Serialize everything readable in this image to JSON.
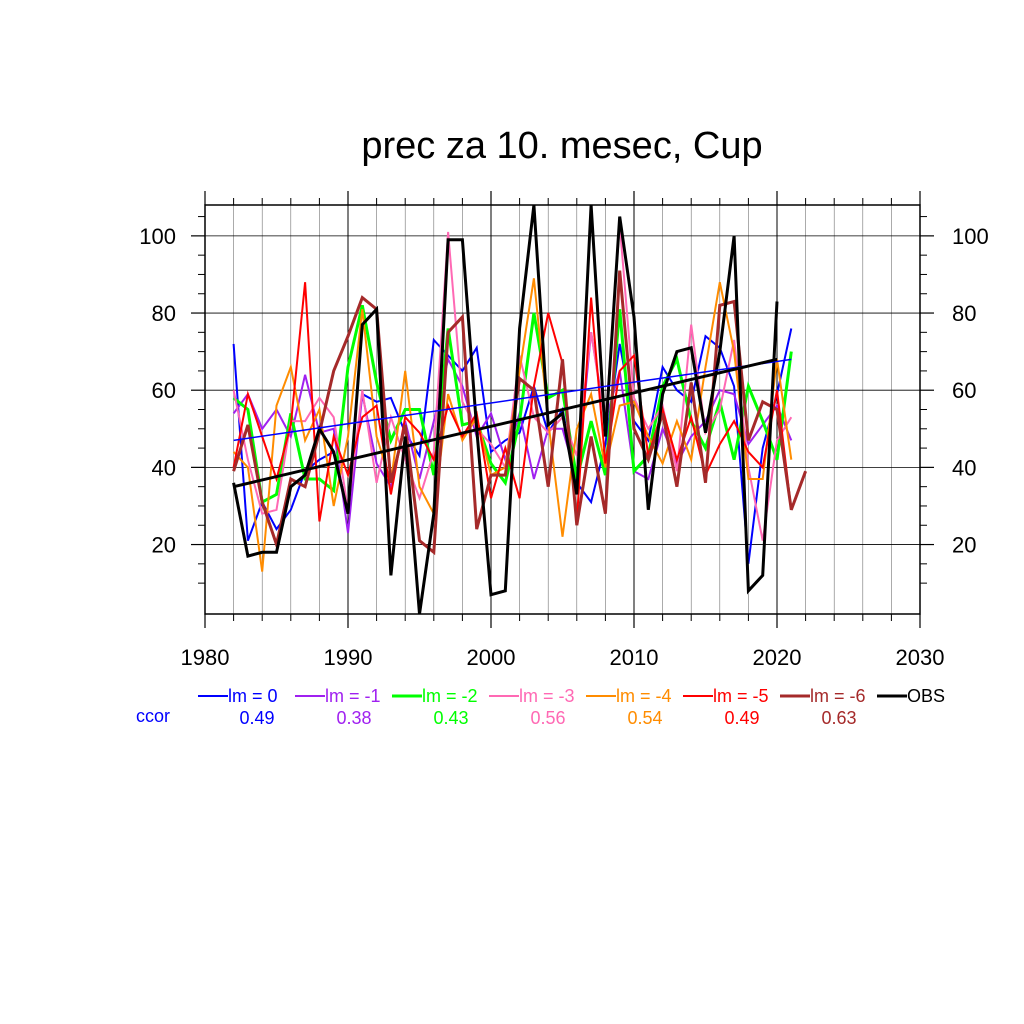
{
  "chart_data": {
    "type": "line",
    "title": "prec za 10. mesec, Cup",
    "xlabel": "",
    "ylabel": "",
    "xlim": [
      1980,
      2030
    ],
    "ylim": [
      2,
      108
    ],
    "x_ticks": [
      1980,
      1990,
      2000,
      2010,
      2020,
      2030
    ],
    "y_ticks": [
      20,
      40,
      60,
      80,
      100
    ],
    "grid": true,
    "legend_placement": "bottom",
    "ccor_label": "ccor",
    "ccor_color": "#0000ff",
    "series": [
      {
        "name": "lm = 0",
        "color": "#0000ff",
        "width": 2,
        "ccor": "0.49",
        "x": [
          1982,
          1983,
          1984,
          1985,
          1986,
          1987,
          1988,
          1989,
          1990,
          1991,
          1992,
          1993,
          1994,
          1995,
          1996,
          1997,
          1998,
          1999,
          2000,
          2001,
          2002,
          2003,
          2004,
          2005,
          2006,
          2007,
          2008,
          2009,
          2010,
          2011,
          2012,
          2013,
          2014,
          2015,
          2016,
          2017,
          2018,
          2019,
          2020,
          2021
        ],
        "values": [
          72,
          21,
          31,
          24,
          29,
          39,
          42,
          44,
          29,
          59,
          57,
          58,
          49,
          43,
          73,
          69,
          65,
          71,
          44,
          47,
          49,
          61,
          49,
          55,
          36,
          31,
          46,
          72,
          52,
          47,
          66,
          60,
          57,
          74,
          71,
          61,
          15,
          45,
          59,
          76
        ]
      },
      {
        "name": "lm = -1",
        "color": "#a020f0",
        "width": 2,
        "ccor": "0.38",
        "x": [
          1982,
          1983,
          1984,
          1985,
          1986,
          1987,
          1988,
          1989,
          1990,
          1991,
          1992,
          1993,
          1994,
          1995,
          1996,
          1997,
          1998,
          1999,
          2000,
          2001,
          2002,
          2003,
          2004,
          2005,
          2006,
          2007,
          2008,
          2009,
          2010,
          2011,
          2012,
          2013,
          2014,
          2015,
          2016,
          2017,
          2018,
          2019,
          2020,
          2021
        ],
        "values": [
          54,
          59,
          50,
          55,
          48,
          64,
          49,
          50,
          23,
          59,
          41,
          35,
          52,
          37,
          52,
          68,
          61,
          48,
          54,
          42,
          54,
          37,
          50,
          50,
          37,
          75,
          52,
          65,
          39,
          37,
          50,
          41,
          48,
          52,
          60,
          59,
          46,
          51,
          56,
          47
        ]
      },
      {
        "name": "lm = -2",
        "color": "#00ff00",
        "width": 3,
        "ccor": "0.43",
        "x": [
          1982,
          1983,
          1984,
          1985,
          1986,
          1987,
          1988,
          1989,
          1990,
          1991,
          1992,
          1993,
          1994,
          1995,
          1996,
          1997,
          1998,
          1999,
          2000,
          2001,
          2002,
          2003,
          2004,
          2005,
          2006,
          2007,
          2008,
          2009,
          2010,
          2011,
          2012,
          2013,
          2014,
          2015,
          2016,
          2017,
          2018,
          2019,
          2020,
          2021
        ],
        "values": [
          58,
          55,
          31,
          33,
          54,
          37,
          37,
          34,
          66,
          82,
          62,
          47,
          55,
          55,
          38,
          76,
          51,
          52,
          41,
          36,
          52,
          80,
          58,
          60,
          37,
          52,
          38,
          81,
          39,
          43,
          61,
          68,
          52,
          45,
          57,
          42,
          61,
          52,
          42,
          70
        ]
      },
      {
        "name": "lm = -3",
        "color": "#ff69b4",
        "width": 2,
        "ccor": "0.56",
        "x": [
          1982,
          1983,
          1984,
          1985,
          1986,
          1987,
          1988,
          1989,
          1990,
          1991,
          1992,
          1993,
          1994,
          1995,
          1996,
          1997,
          1998,
          1999,
          2000,
          2001,
          2002,
          2003,
          2004,
          2005,
          2006,
          2007,
          2008,
          2009,
          2010,
          2011,
          2012,
          2013,
          2014,
          2015,
          2016,
          2017,
          2018,
          2019,
          2020,
          2021
        ],
        "values": [
          60,
          42,
          28,
          29,
          52,
          52,
          58,
          53,
          29,
          60,
          36,
          53,
          42,
          32,
          44,
          101,
          57,
          50,
          46,
          40,
          69,
          53,
          49,
          53,
          43,
          75,
          51,
          103,
          58,
          50,
          56,
          39,
          77,
          49,
          55,
          73,
          40,
          21,
          47,
          53
        ]
      },
      {
        "name": "lm = -4",
        "color": "#ff8c00",
        "width": 2,
        "ccor": "0.54",
        "x": [
          1982,
          1983,
          1984,
          1985,
          1986,
          1987,
          1988,
          1989,
          1990,
          1991,
          1992,
          1993,
          1994,
          1995,
          1996,
          1997,
          1998,
          1999,
          2000,
          2001,
          2002,
          2003,
          2004,
          2005,
          2006,
          2007,
          2008,
          2009,
          2010,
          2011,
          2012,
          2013,
          2014,
          2015,
          2016,
          2017,
          2018,
          2019,
          2020,
          2021
        ],
        "values": [
          44,
          40,
          13,
          56,
          66,
          47,
          55,
          30,
          48,
          81,
          48,
          36,
          65,
          35,
          28,
          59,
          47,
          53,
          38,
          40,
          65,
          89,
          52,
          22,
          50,
          59,
          40,
          56,
          57,
          48,
          41,
          52,
          42,
          66,
          88,
          70,
          37,
          37,
          68,
          42
        ]
      },
      {
        "name": "lm = -5",
        "color": "#ff0000",
        "width": 2,
        "ccor": "0.49",
        "x": [
          1982,
          1983,
          1984,
          1985,
          1986,
          1987,
          1988,
          1989,
          1990,
          1991,
          1992,
          1993,
          1994,
          1995,
          1996,
          1997,
          1998,
          1999,
          2000,
          2001,
          2002,
          2003,
          2004,
          2005,
          2006,
          2007,
          2008,
          2009,
          2010,
          2011,
          2012,
          2013,
          2014,
          2015,
          2016,
          2017,
          2018,
          2019,
          2020,
          2021
        ],
        "values": [
          40,
          59,
          48,
          37,
          51,
          88,
          26,
          48,
          38,
          53,
          56,
          33,
          53,
          49,
          42,
          56,
          48,
          54,
          32,
          45,
          32,
          61,
          80,
          67,
          26,
          84,
          41,
          65,
          69,
          43,
          55,
          42,
          53,
          38,
          46,
          52,
          44,
          40,
          60,
          29
        ]
      },
      {
        "name": "lm = -6",
        "color": "#a52a2a",
        "width": 3,
        "ccor": "0.63",
        "x": [
          1982,
          1983,
          1984,
          1985,
          1986,
          1987,
          1988,
          1989,
          1990,
          1991,
          1992,
          1993,
          1994,
          1995,
          1996,
          1997,
          1998,
          1999,
          2000,
          2001,
          2002,
          2003,
          2004,
          2005,
          2006,
          2007,
          2008,
          2009,
          2010,
          2011,
          2012,
          2013,
          2014,
          2015,
          2016,
          2017,
          2018,
          2019,
          2020,
          2021,
          2022
        ],
        "values": [
          39,
          51,
          31,
          20,
          37,
          35,
          49,
          65,
          74,
          84,
          81,
          36,
          51,
          21,
          18,
          75,
          79,
          24,
          38,
          38,
          63,
          60,
          35,
          68,
          25,
          48,
          28,
          91,
          50,
          42,
          54,
          35,
          62,
          36,
          82,
          83,
          47,
          57,
          55,
          29,
          39
        ]
      },
      {
        "name": "OBS",
        "color": "#000000",
        "width": 3,
        "ccor": "",
        "x": [
          1982,
          1983,
          1984,
          1985,
          1986,
          1987,
          1988,
          1989,
          1990,
          1991,
          1992,
          1993,
          1994,
          1995,
          1996,
          1997,
          1998,
          1999,
          2000,
          2001,
          2002,
          2003,
          2004,
          2005,
          2006,
          2007,
          2008,
          2009,
          2010,
          2011,
          2012,
          2013,
          2014,
          2015,
          2016,
          2017,
          2018,
          2019,
          2020
        ],
        "values": [
          36,
          17,
          18,
          18,
          35,
          38,
          50,
          44,
          28,
          77,
          81,
          12,
          48,
          2,
          28,
          99,
          99,
          50,
          7,
          8,
          76,
          108,
          51,
          54,
          33,
          108,
          48,
          105,
          79,
          29,
          59,
          70,
          71,
          49,
          70,
          100,
          8,
          12,
          83
        ]
      }
    ],
    "trend_lines": [
      {
        "name": "lm = 0 trend",
        "color": "#0000ff",
        "width": 1.5,
        "x": [
          1982,
          2021
        ],
        "values": [
          47,
          68
        ]
      },
      {
        "name": "OBS trend",
        "color": "#000000",
        "width": 3,
        "x": [
          1982,
          2020
        ],
        "values": [
          35,
          68
        ]
      }
    ]
  }
}
